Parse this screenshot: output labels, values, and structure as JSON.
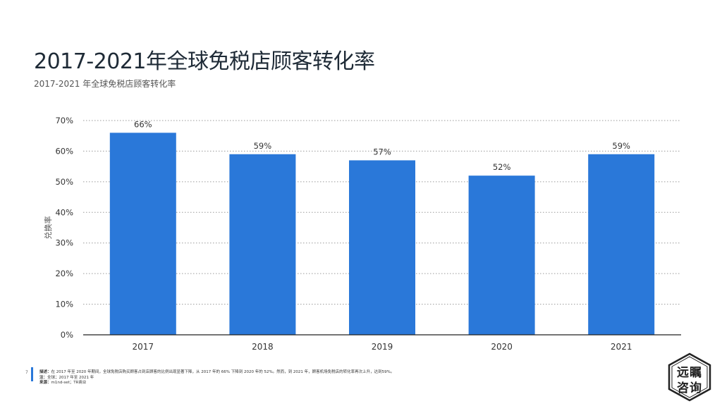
{
  "header": {
    "title": "2017-2021年全球免税店顾客转化率",
    "subtitle": "2017-2021 年全球免税店顾客转化率"
  },
  "chart_data": {
    "type": "bar",
    "categories": [
      "2017",
      "2018",
      "2019",
      "2020",
      "2021"
    ],
    "values": [
      66,
      59,
      57,
      52,
      59
    ],
    "data_labels": [
      "66%",
      "59%",
      "57%",
      "52%",
      "59%"
    ],
    "yticks": [
      "0%",
      "10%",
      "20%",
      "30%",
      "40%",
      "50%",
      "60%",
      "70%"
    ],
    "ylim": [
      0,
      70
    ],
    "ylabel": "兑换率",
    "xlabel": "",
    "grid": true,
    "bar_color": "#2a78d9"
  },
  "footer": {
    "page_number": "7",
    "desc_label": "描述：",
    "desc_text": "在 2017 年至 2020 年期间，全球免税店购买顾客占到店顾客的比例出现显著下降，从 2017 年的 66% 下降到 2020 年的 52%。然而，到 2021 年，顾客机场免税店的转化率再次上升，达到59%。",
    "note_label": "注：",
    "note_text": "全球；2017 年至 2021 年",
    "source_label": "来源：",
    "source_text": "m1nd-set；TR商业"
  },
  "logo": {
    "line1": "远瞩",
    "line2": "咨询"
  },
  "colors": {
    "accent": "#2a78d9",
    "title": "#1e2a36"
  }
}
